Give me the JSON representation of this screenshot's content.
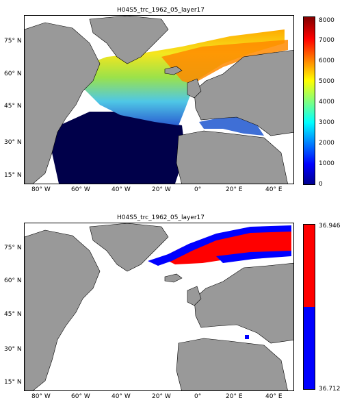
{
  "panels": [
    {
      "title": "H04S5_trc_1962_05_layer17",
      "lat_ticks": [
        "75° N",
        "60° N",
        "45° N",
        "30° N",
        "15° N"
      ],
      "lon_ticks": [
        "80° W",
        "60° W",
        "40° W",
        "20° W",
        "0°",
        "20° E",
        "40° E"
      ],
      "colorbar": {
        "ticks": [
          "8000",
          "7000",
          "6000",
          "5000",
          "4000",
          "3000",
          "2000",
          "1000",
          "0"
        ],
        "range": [
          0,
          8000
        ],
        "colormap": "jet"
      }
    },
    {
      "title": "H04S5_trc_1962_05_layer17",
      "lat_ticks": [
        "75° N",
        "60° N",
        "45° N",
        "30° N",
        "15° N"
      ],
      "lon_ticks": [
        "80° W",
        "60° W",
        "40° W",
        "20° W",
        "0°",
        "20° E",
        "40° E"
      ],
      "colorbar": {
        "ticks": [
          "36.946",
          "36.712"
        ],
        "range": [
          36.712,
          36.946
        ],
        "colors": [
          "#ff0000",
          "#0000ff"
        ]
      }
    }
  ],
  "colors": {
    "land": "#999999",
    "ocean_deep": "#00004a",
    "ocean_missing": "#ffffff"
  },
  "map_extent": {
    "lon": [
      -90,
      50
    ],
    "lat": [
      10,
      85
    ]
  }
}
